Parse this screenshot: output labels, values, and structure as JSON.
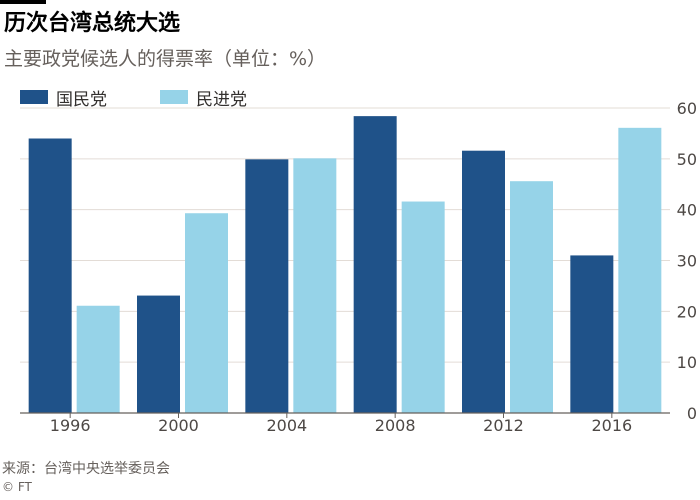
{
  "title": "历次台湾总统大选",
  "subtitle": "主要政党候选人的得票率（单位：%）",
  "source": "来源：台湾中央选举委员会",
  "copyright": "© FT",
  "colors": {
    "kmt": "#1f5289",
    "dpp": "#96d3e8",
    "grid": "#e3dcd6",
    "baseline": "#66605c"
  },
  "chart_data": {
    "type": "bar",
    "categories": [
      "1996",
      "2000",
      "2004",
      "2008",
      "2012",
      "2016"
    ],
    "series": [
      {
        "name": "国民党",
        "color": "#1f5289",
        "values": [
          54.0,
          23.1,
          49.9,
          58.4,
          51.6,
          31.0
        ]
      },
      {
        "name": "民进党",
        "color": "#96d3e8",
        "values": [
          21.1,
          39.3,
          50.1,
          41.6,
          45.6,
          56.1
        ]
      }
    ],
    "title": "历次台湾总统大选",
    "subtitle": "主要政党候选人的得票率（单位：%）",
    "ylim": [
      0,
      60
    ],
    "yticks": [
      "0",
      "10",
      "20",
      "30",
      "40",
      "50",
      "60"
    ],
    "y_axis_side": "right",
    "grid": true,
    "legend": "top-left"
  }
}
